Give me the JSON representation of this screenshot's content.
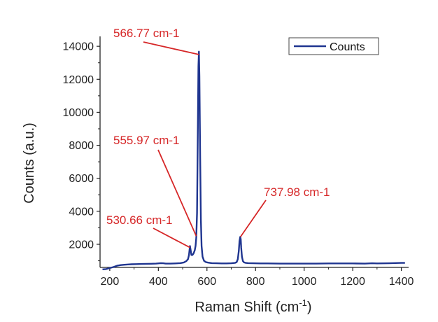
{
  "chart_data": {
    "type": "line",
    "xlabel": "Raman Shift (cm",
    "xlabel_superscript": "-1",
    "xlabel_suffix": ")",
    "ylabel": "Counts (a.u.)",
    "xlim": [
      160,
      1430
    ],
    "ylim": [
      600,
      14600
    ],
    "x_ticks": [
      200,
      400,
      600,
      800,
      1000,
      1200,
      1400
    ],
    "y_ticks": [
      2000,
      4000,
      6000,
      8000,
      10000,
      12000,
      14000
    ],
    "grid": false,
    "legend_position": "top-right",
    "series": [
      {
        "name": "Counts",
        "color": "#1f3590",
        "x": [
          170,
          185,
          200,
          215,
          230,
          245,
          260,
          275,
          290,
          310,
          330,
          350,
          370,
          390,
          410,
          420,
          430,
          450,
          470,
          490,
          505,
          515,
          522,
          526,
          530,
          533,
          536,
          540,
          545,
          550,
          553,
          556,
          559,
          562,
          565,
          567,
          569,
          572,
          575,
          578,
          582,
          588,
          596,
          605,
          620,
          640,
          660,
          680,
          700,
          715,
          722,
          727,
          731,
          734,
          737,
          739,
          741,
          744,
          748,
          753,
          760,
          770,
          790,
          820,
          850,
          900,
          950,
          1000,
          1050,
          1100,
          1150,
          1200,
          1250,
          1280,
          1300,
          1350,
          1400,
          1415
        ],
        "y": [
          480,
          500,
          560,
          620,
          700,
          740,
          760,
          780,
          790,
          800,
          810,
          815,
          820,
          830,
          860,
          850,
          830,
          830,
          840,
          860,
          900,
          980,
          1100,
          1350,
          1900,
          1650,
          1350,
          1350,
          1450,
          1650,
          1900,
          2400,
          3900,
          8200,
          12800,
          13680,
          12200,
          7200,
          3500,
          1900,
          1250,
          1000,
          920,
          890,
          860,
          850,
          840,
          840,
          850,
          870,
          920,
          1100,
          1600,
          2200,
          2450,
          2300,
          1800,
          1250,
          980,
          900,
          870,
          860,
          850,
          840,
          840,
          830,
          830,
          830,
          830,
          840,
          840,
          840,
          830,
          850,
          840,
          850,
          870,
          870
        ]
      }
    ],
    "annotations": [
      {
        "text": "566.77 cm-1",
        "point_x": 566.77,
        "point_y": 13500,
        "color": "#d62728"
      },
      {
        "text": "555.97 cm-1",
        "point_x": 555.97,
        "point_y": 2500,
        "color": "#d62728"
      },
      {
        "text": "530.66 cm-1",
        "point_x": 530.66,
        "point_y": 1800,
        "color": "#d62728"
      },
      {
        "text": "737.98 cm-1",
        "point_x": 737.98,
        "point_y": 2450,
        "color": "#d62728"
      }
    ]
  }
}
